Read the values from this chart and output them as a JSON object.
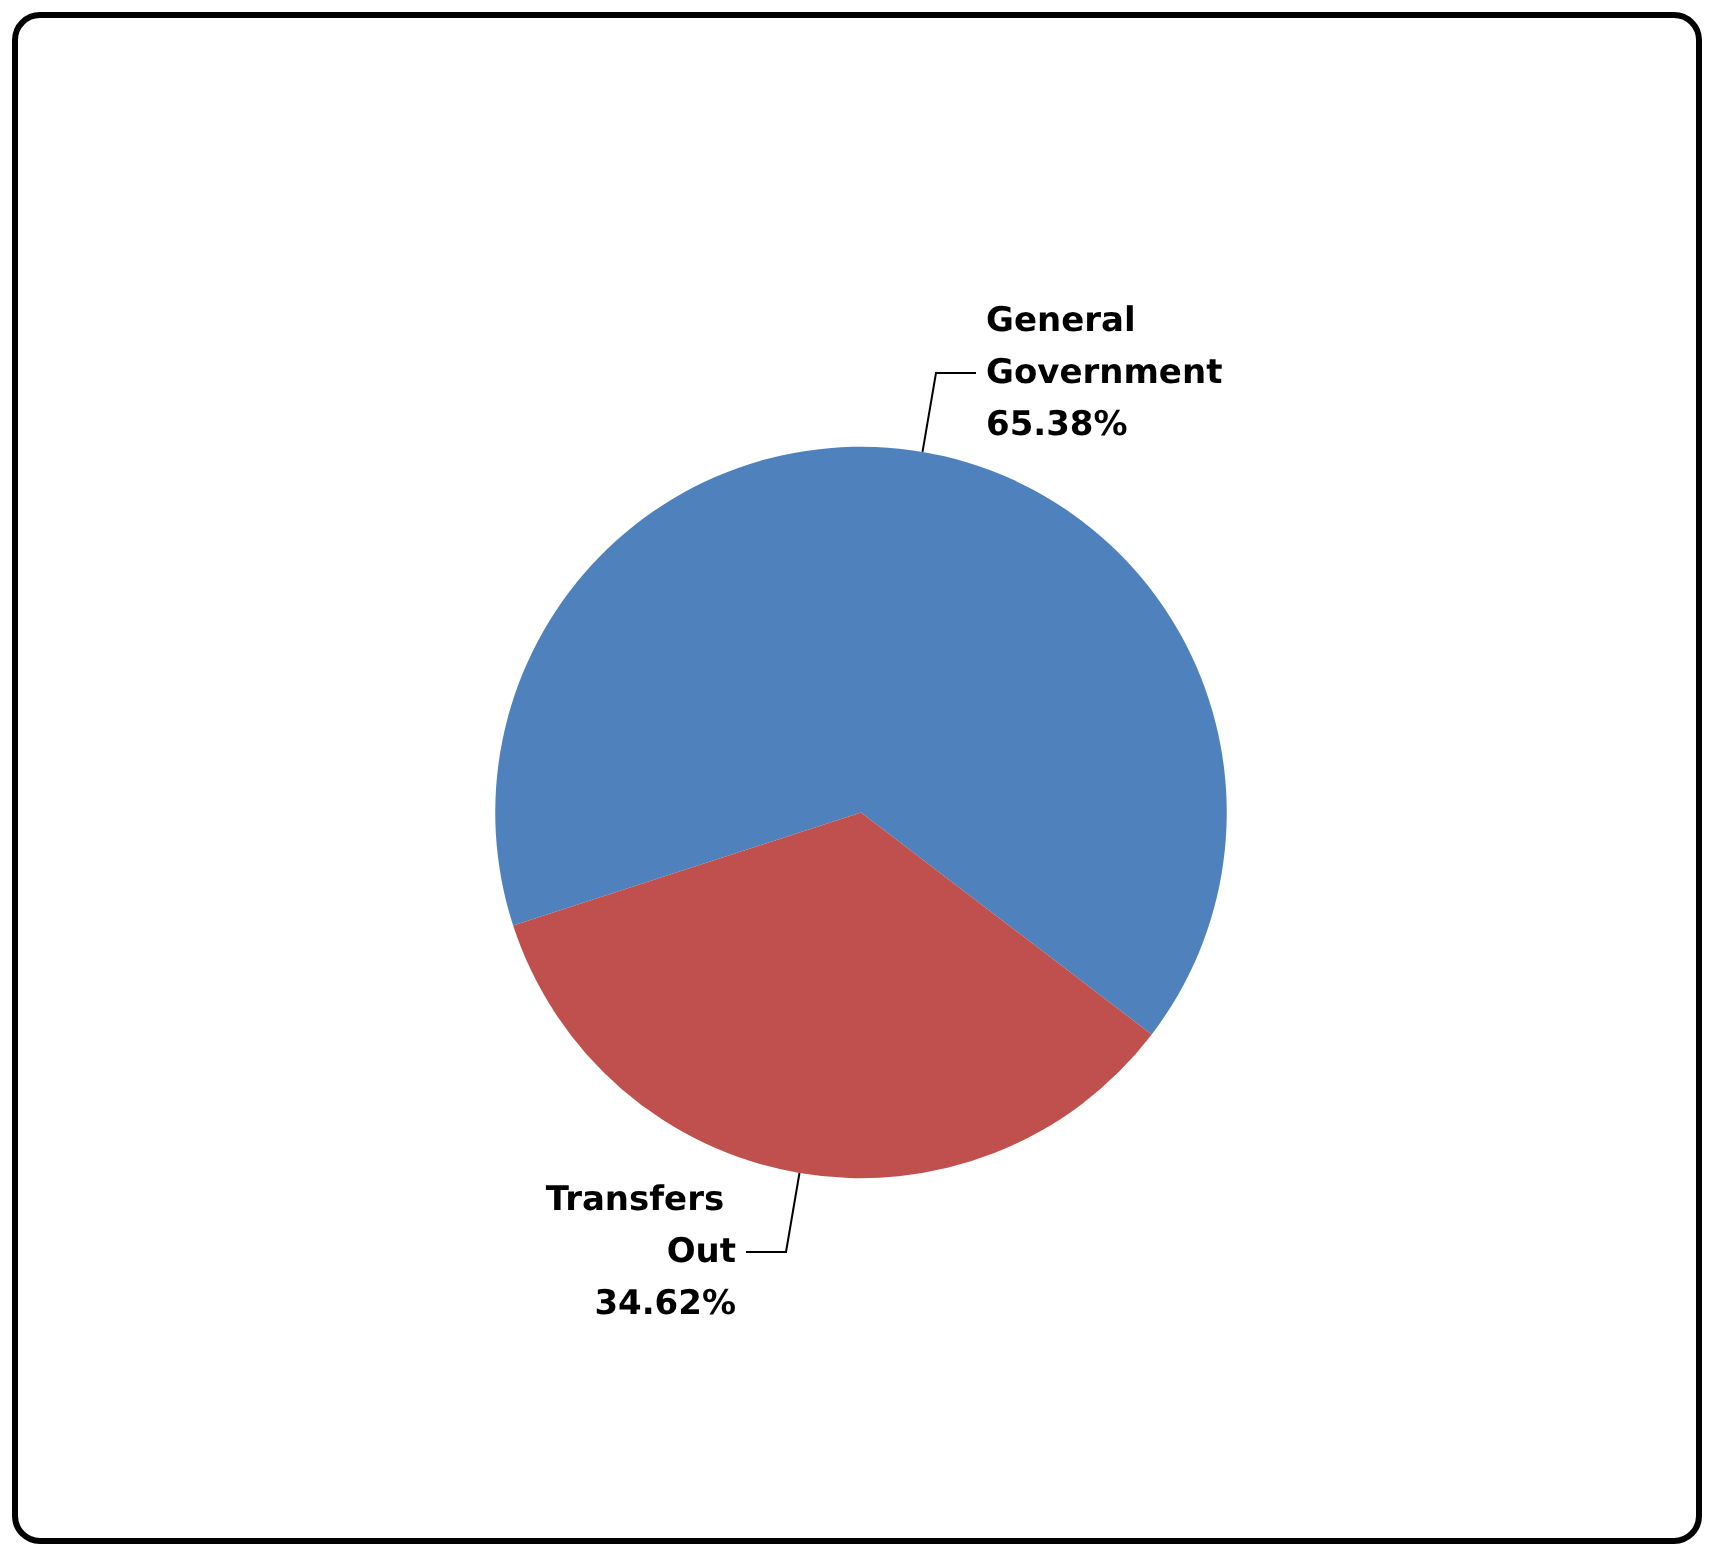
{
  "chart_data": {
    "type": "pie",
    "categories": [
      "General Government",
      "Transfers Out"
    ],
    "values": [
      65.38,
      34.62
    ],
    "colors": [
      "#4f81bd",
      "#c0504d"
    ],
    "value_labels": [
      "65.38%",
      "34.62%"
    ],
    "legend": false
  }
}
